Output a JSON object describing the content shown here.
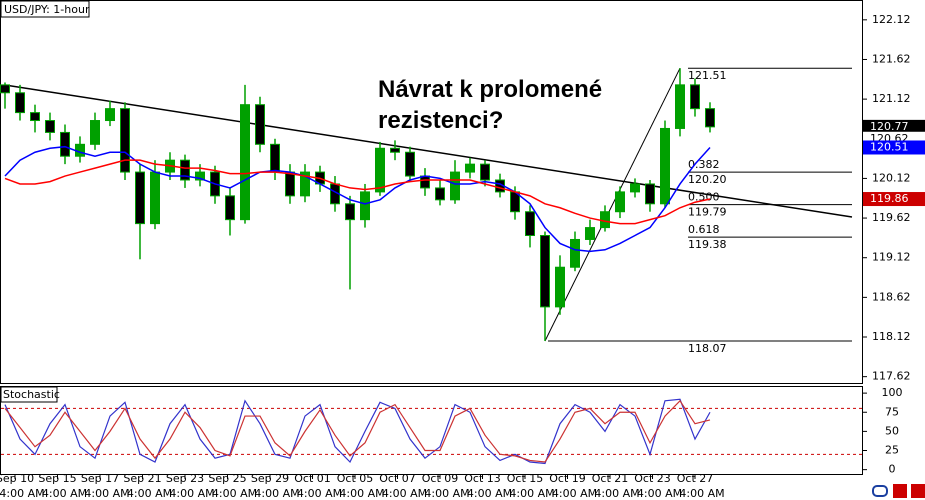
{
  "chart_data": [
    {
      "type": "candlestick",
      "title": "USD/JPY: 1-hour",
      "annotation": [
        "Návrat k prolomené",
        "rezistenci?"
      ],
      "open": [
        121.3,
        121.2,
        120.95,
        120.85,
        120.7,
        120.4,
        120.55,
        120.85,
        121.0,
        120.2,
        119.55,
        120.2,
        120.35,
        120.1,
        120.2,
        119.9,
        119.6,
        121.05,
        120.55,
        120.2,
        119.9,
        120.2,
        120.05,
        119.8,
        119.6,
        119.95,
        120.5,
        120.45,
        120.15,
        120.0,
        119.85,
        120.2,
        120.3,
        120.1,
        119.95,
        119.7,
        119.4,
        118.5,
        119.0,
        119.35,
        119.5,
        119.7,
        119.95,
        120.05,
        119.8,
        120.75,
        121.3,
        121.0
      ],
      "high": [
        121.33,
        121.3,
        121.05,
        120.95,
        120.8,
        120.65,
        120.95,
        121.1,
        121.08,
        120.3,
        120.35,
        120.45,
        120.42,
        120.3,
        120.28,
        120.0,
        121.3,
        121.15,
        120.62,
        120.3,
        120.3,
        120.28,
        120.15,
        119.9,
        120.05,
        120.58,
        120.6,
        120.52,
        120.25,
        120.1,
        120.35,
        120.38,
        120.35,
        120.18,
        120.02,
        119.78,
        119.45,
        119.15,
        119.45,
        119.6,
        119.78,
        120.02,
        120.12,
        120.1,
        120.85,
        121.51,
        121.38,
        121.08
      ],
      "low": [
        121.0,
        120.85,
        120.7,
        120.6,
        120.3,
        120.32,
        120.48,
        120.78,
        120.1,
        119.1,
        119.48,
        120.1,
        120.0,
        120.02,
        119.8,
        119.4,
        119.55,
        120.45,
        120.1,
        119.8,
        119.82,
        119.95,
        119.7,
        118.72,
        119.5,
        119.9,
        120.35,
        120.08,
        119.9,
        119.78,
        119.8,
        120.12,
        120.02,
        119.88,
        119.6,
        119.25,
        118.07,
        118.4,
        118.95,
        119.28,
        119.45,
        119.62,
        119.88,
        119.7,
        119.75,
        120.65,
        120.9,
        120.7
      ],
      "close": [
        121.2,
        120.95,
        120.85,
        120.7,
        120.4,
        120.55,
        120.85,
        121.0,
        120.2,
        119.55,
        120.2,
        120.35,
        120.1,
        120.2,
        119.9,
        119.6,
        121.05,
        120.55,
        120.2,
        119.9,
        120.2,
        120.05,
        119.8,
        119.6,
        119.95,
        120.5,
        120.45,
        120.15,
        120.0,
        119.85,
        120.2,
        120.3,
        120.1,
        119.95,
        119.7,
        119.4,
        118.5,
        119.0,
        119.35,
        119.5,
        119.7,
        119.95,
        120.05,
        119.8,
        120.75,
        121.3,
        121.0,
        120.77
      ],
      "up_color": "#00a000",
      "down_color": "#000000",
      "series": [
        {
          "color": "#0000ff",
          "values": [
            120.15,
            120.35,
            120.45,
            120.5,
            120.52,
            120.45,
            120.4,
            120.45,
            120.45,
            120.3,
            120.2,
            120.15,
            120.15,
            120.12,
            120.05,
            120.0,
            120.1,
            120.2,
            120.22,
            120.2,
            120.15,
            120.05,
            119.95,
            119.85,
            119.8,
            119.85,
            120.0,
            120.1,
            120.15,
            120.12,
            120.05,
            120.05,
            120.08,
            120.05,
            119.95,
            119.8,
            119.5,
            119.3,
            119.22,
            119.2,
            119.22,
            119.3,
            119.4,
            119.5,
            119.75,
            120.05,
            120.3,
            120.51
          ]
        },
        {
          "color": "#ff0000",
          "values": [
            120.12,
            120.05,
            120.05,
            120.08,
            120.15,
            120.2,
            120.25,
            120.3,
            120.35,
            120.35,
            120.3,
            120.28,
            120.25,
            120.25,
            120.22,
            120.18,
            120.18,
            120.2,
            120.2,
            120.18,
            120.15,
            120.12,
            120.05,
            120.0,
            119.98,
            120.0,
            120.05,
            120.08,
            120.1,
            120.1,
            120.1,
            120.1,
            120.05,
            120.0,
            119.95,
            119.9,
            119.8,
            119.75,
            119.68,
            119.62,
            119.58,
            119.55,
            119.55,
            119.6,
            119.65,
            119.75,
            119.82,
            119.86
          ]
        }
      ],
      "ylim": [
        117.54,
        122.37
      ],
      "yticks": [
        122.12,
        121.62,
        121.12,
        120.62,
        120.12,
        119.62,
        119.12,
        118.62,
        118.12,
        117.62
      ],
      "fib_levels": [
        {
          "value": 121.51,
          "label": "121.51"
        },
        {
          "ratio": "0.382",
          "value": 120.2,
          "label": "120.20"
        },
        {
          "ratio": "0.500",
          "value": 119.79,
          "label": "119.79"
        },
        {
          "ratio": "0.618",
          "value": 119.38,
          "label": "119.38"
        },
        {
          "value": 118.07,
          "label": "118.07"
        }
      ],
      "price_tags": [
        {
          "value": 120.77,
          "color": "#000000"
        },
        {
          "value": 120.62,
          "color": "#ffffff"
        },
        {
          "value": 120.51,
          "color": "#0000ff"
        },
        {
          "value": 119.86,
          "color": "#cc0000"
        }
      ]
    },
    {
      "type": "line",
      "title": "Stochastic",
      "series": [
        {
          "color": "#3333cc",
          "values": [
            85,
            40,
            20,
            60,
            85,
            30,
            15,
            70,
            88,
            20,
            10,
            60,
            85,
            40,
            15,
            20,
            90,
            60,
            20,
            15,
            70,
            85,
            30,
            10,
            50,
            88,
            80,
            40,
            15,
            30,
            85,
            75,
            30,
            12,
            20,
            10,
            8,
            60,
            85,
            75,
            50,
            85,
            70,
            20,
            90,
            92,
            40,
            75
          ]
        },
        {
          "color": "#cc3333",
          "values": [
            80,
            55,
            30,
            45,
            75,
            50,
            25,
            50,
            80,
            40,
            15,
            40,
            75,
            55,
            25,
            18,
            70,
            70,
            35,
            18,
            50,
            78,
            45,
            18,
            35,
            75,
            85,
            55,
            25,
            25,
            70,
            80,
            45,
            20,
            18,
            12,
            10,
            40,
            75,
            80,
            60,
            75,
            75,
            35,
            70,
            90,
            60,
            65
          ]
        }
      ],
      "ylim": [
        -7,
        108
      ],
      "yticks": [
        100,
        75,
        50,
        25,
        0
      ],
      "levels": [
        80,
        20
      ]
    }
  ],
  "x_axis": {
    "dates": [
      "Sep 10",
      "Sep 15",
      "Sep 17",
      "Sep 21",
      "Sep 23",
      "Sep 25",
      "Sep 29",
      "Oct 01",
      "Oct 05",
      "Oct 07",
      "Oct 09",
      "Oct 13",
      "Oct 15",
      "Oct 19",
      "Oct 21",
      "Oct 23",
      "Oct 27"
    ],
    "times": [
      "4:00 AM",
      "4:00 AM",
      "4:00 AM",
      "4:00 AM",
      "4:00 AM",
      "4:00 AM",
      "4:00 AM",
      "4:00 AM",
      "4:00 AM",
      "4:00 AM",
      "4:00 AM",
      "4:00 AM",
      "4:00 AM",
      "4:00 AM",
      "4:00 AM",
      "4:00 AM",
      "4:00 AM"
    ]
  }
}
